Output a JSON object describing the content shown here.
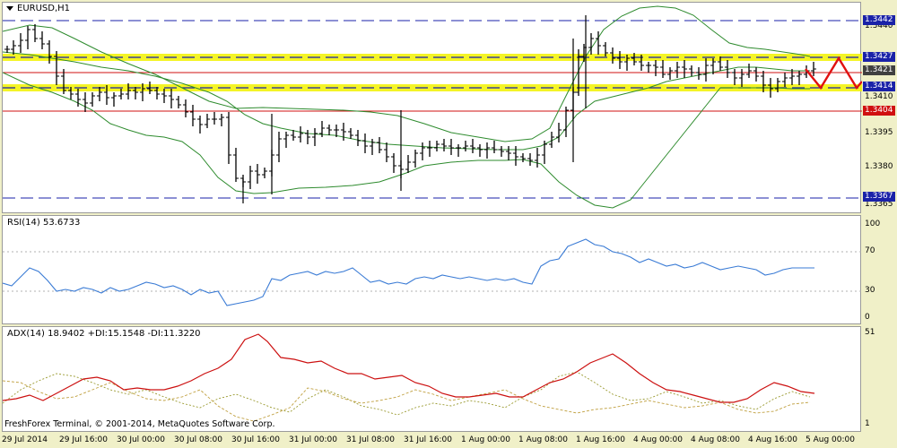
{
  "main": {
    "symbol_label": "EURUSD,H1",
    "price_ticks": [
      "1.3440",
      "1.3410",
      "1.3395",
      "1.3380",
      "1.3365"
    ],
    "level_tags": [
      {
        "value": "1.3442",
        "color": "#1a22a8"
      },
      {
        "value": "1.3427",
        "color": "#1a22a8"
      },
      {
        "value": "1.3421",
        "color": "#404040"
      },
      {
        "value": "1.3414",
        "color": "#1a22a8"
      },
      {
        "value": "1.3404",
        "color": "#d01010"
      },
      {
        "value": "1.3367",
        "color": "#1a22a8"
      }
    ]
  },
  "rsi": {
    "label": "RSI(14) 53.6733",
    "ticks": [
      "100",
      "70",
      "30",
      "0"
    ]
  },
  "adx": {
    "label": "ADX(14) 18.9402 +DI:15.1548 -DI:11.3220",
    "ticks": [
      "51",
      "1"
    ]
  },
  "copyright": "FreshForex Terminal, © 2001-2014, MetaQuotes Software Corp.",
  "time_axis": [
    "29 Jul 2014",
    "29 Jul 16:00",
    "30 Jul 00:00",
    "30 Jul 08:00",
    "30 Jul 16:00",
    "31 Jul 00:00",
    "31 Jul 08:00",
    "31 Jul 16:00",
    "1 Aug 00:00",
    "1 Aug 08:00",
    "1 Aug 16:00",
    "4 Aug 00:00",
    "4 Aug 08:00",
    "4 Aug 16:00",
    "5 Aug 00:00"
  ],
  "chart_data": [
    {
      "type": "bar",
      "title": "EURUSD,H1",
      "x_range": [
        "29 Jul 2014",
        "5 Aug 00:00"
      ],
      "y_range": [
        1.3362,
        1.3445
      ],
      "price_levels": [
        1.3442,
        1.3427,
        1.3421,
        1.3414,
        1.3404,
        1.3367
      ],
      "shaded_zones": [
        [
          1.3425,
          1.3429
        ],
        [
          1.3412,
          1.3416
        ]
      ],
      "overlays": [
        "Bollinger Bands"
      ],
      "colors": {
        "bars": "#000000",
        "bands": "#2e8b2e",
        "level_lines": "#1a22a8",
        "support_line": "#d01010",
        "projection": "#e01010",
        "zone": "#f2f200"
      }
    },
    {
      "type": "line",
      "title": "RSI(14) 53.6733",
      "ylim": [
        0,
        100
      ],
      "levels": [
        30,
        70
      ],
      "series": [
        {
          "name": "RSI(14)",
          "last": 53.6733,
          "color": "#3a7bd5"
        }
      ]
    },
    {
      "type": "line",
      "title": "ADX(14) 18.9402 +DI:15.1548 -DI:11.3220",
      "ylim": [
        1,
        51
      ],
      "series": [
        {
          "name": "ADX(14)",
          "last": 18.9402,
          "color": "#cc1010"
        },
        {
          "name": "+DI",
          "last": 15.1548,
          "color": "#9a9a30"
        },
        {
          "name": "-DI",
          "last": 11.322,
          "color": "#c0a040"
        }
      ]
    }
  ]
}
